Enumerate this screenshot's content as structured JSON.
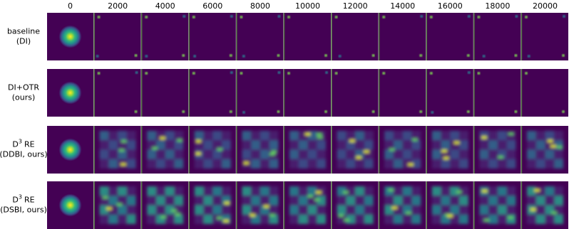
{
  "columns": [
    "0",
    "2000",
    "4000",
    "6000",
    "8000",
    "10000",
    "12000",
    "14000",
    "16000",
    "18000",
    "20000"
  ],
  "rows": [
    {
      "title": "baseline",
      "subtitle": "(DI)"
    },
    {
      "title": "DI+OTR",
      "subtitle": "(ours)"
    },
    {
      "title_base": "D",
      "title_sup": "3",
      "title_rest": "RE",
      "subtitle": "(DDBI, ours)"
    },
    {
      "title_base": "D",
      "title_sup": "3",
      "title_rest": "RE",
      "subtitle": "(DSBI, ours)"
    }
  ]
}
